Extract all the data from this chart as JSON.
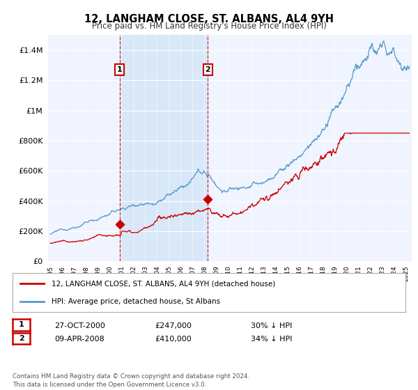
{
  "title": "12, LANGHAM CLOSE, ST. ALBANS, AL4 9YH",
  "subtitle": "Price paid vs. HM Land Registry's House Price Index (HPI)",
  "legend_line1": "12, LANGHAM CLOSE, ST. ALBANS, AL4 9YH (detached house)",
  "legend_line2": "HPI: Average price, detached house, St Albans",
  "transaction1_date": "27-OCT-2000",
  "transaction1_price": "£247,000",
  "transaction1_hpi": "30% ↓ HPI",
  "transaction1_year": 2000.83,
  "transaction1_value": 247000,
  "transaction2_date": "09-APR-2008",
  "transaction2_price": "£410,000",
  "transaction2_hpi": "34% ↓ HPI",
  "transaction2_year": 2008.28,
  "transaction2_value": 410000,
  "footer": "Contains HM Land Registry data © Crown copyright and database right 2024.\nThis data is licensed under the Open Government Licence v3.0.",
  "red_color": "#cc0000",
  "blue_color": "#5599cc",
  "blue_fill": "#d8e8f8",
  "vline_color": "#cc0000",
  "plot_bg_color": "#f0f4ff",
  "ylim_max": 1500000,
  "xlim_start": 1994.8,
  "xlim_end": 2025.5
}
